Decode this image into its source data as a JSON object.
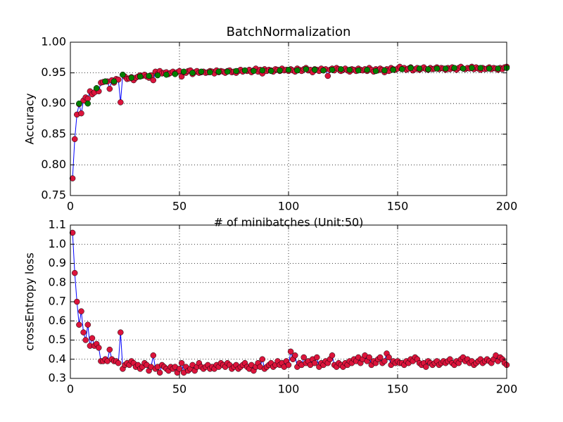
{
  "chart_data": [
    {
      "type": "line",
      "title": "BatchNormalization",
      "xlabel": "# of minibatches (Unit:50)",
      "ylabel": "Accuracy",
      "x": [
        1,
        2,
        3,
        4,
        5,
        6,
        7,
        8,
        9,
        10,
        11,
        12,
        13,
        14,
        15,
        16,
        17,
        18,
        19,
        20,
        21,
        22,
        23,
        24,
        25,
        26,
        27,
        28,
        29,
        30,
        31,
        32,
        33,
        34,
        35,
        36,
        37,
        38,
        39,
        40,
        41,
        42,
        43,
        44,
        45,
        46,
        47,
        48,
        49,
        50,
        51,
        52,
        53,
        54,
        55,
        56,
        57,
        58,
        59,
        60,
        61,
        62,
        63,
        64,
        65,
        66,
        67,
        68,
        69,
        70,
        71,
        72,
        73,
        74,
        75,
        76,
        77,
        78,
        79,
        80,
        81,
        82,
        83,
        84,
        85,
        86,
        87,
        88,
        89,
        90,
        91,
        92,
        93,
        94,
        95,
        96,
        97,
        98,
        99,
        100,
        101,
        102,
        103,
        104,
        105,
        106,
        107,
        108,
        109,
        110,
        111,
        112,
        113,
        114,
        115,
        116,
        117,
        118,
        119,
        120,
        121,
        122,
        123,
        124,
        125,
        126,
        127,
        128,
        129,
        130,
        131,
        132,
        133,
        134,
        135,
        136,
        137,
        138,
        139,
        140,
        141,
        142,
        143,
        144,
        145,
        146,
        147,
        148,
        149,
        150,
        151,
        152,
        153,
        154,
        155,
        156,
        157,
        158,
        159,
        160,
        161,
        162,
        163,
        164,
        165,
        166,
        167,
        168,
        169,
        170,
        171,
        172,
        173,
        174,
        175,
        176,
        177,
        178,
        179,
        180,
        181,
        182,
        183,
        184,
        185,
        186,
        187,
        188,
        189,
        190,
        191,
        192,
        193,
        194,
        195,
        196,
        197,
        198,
        199,
        200
      ],
      "series": [
        {
          "color": "#0000ff",
          "marker_color": "#dc143c",
          "line": true,
          "values": [
            0.778,
            0.842,
            0.882,
            0.899,
            0.884,
            0.905,
            0.91,
            0.908,
            0.92,
            0.915,
            0.918,
            0.925,
            0.92,
            0.934,
            0.935,
            0.936,
            0.936,
            0.924,
            0.938,
            0.934,
            0.94,
            0.939,
            0.902,
            0.947,
            0.944,
            0.94,
            0.941,
            0.943,
            0.938,
            0.942,
            0.944,
            0.946,
            0.945,
            0.947,
            0.944,
            0.942,
            0.946,
            0.938,
            0.952,
            0.948,
            0.953,
            0.949,
            0.95,
            0.951,
            0.948,
            0.95,
            0.952,
            0.949,
            0.951,
            0.953,
            0.944,
            0.951,
            0.95,
            0.953,
            0.954,
            0.948,
            0.951,
            0.953,
            0.95,
            0.951,
            0.952,
            0.95,
            0.951,
            0.953,
            0.952,
            0.949,
            0.954,
            0.951,
            0.953,
            0.952,
            0.95,
            0.953,
            0.954,
            0.951,
            0.952,
            0.95,
            0.953,
            0.955,
            0.952,
            0.954,
            0.953,
            0.955,
            0.951,
            0.954,
            0.957,
            0.952,
            0.955,
            0.949,
            0.956,
            0.953,
            0.955,
            0.954,
            0.952,
            0.956,
            0.955,
            0.953,
            0.957,
            0.954,
            0.955,
            0.953,
            0.956,
            0.954,
            0.952,
            0.957,
            0.955,
            0.953,
            0.956,
            0.958,
            0.954,
            0.955,
            0.951,
            0.956,
            0.955,
            0.953,
            0.957,
            0.954,
            0.956,
            0.945,
            0.955,
            0.957,
            0.954,
            0.958,
            0.956,
            0.953,
            0.955,
            0.957,
            0.954,
            0.952,
            0.956,
            0.955,
            0.953,
            0.957,
            0.955,
            0.954,
            0.956,
            0.953,
            0.958,
            0.955,
            0.952,
            0.956,
            0.954,
            0.957,
            0.955,
            0.951,
            0.956,
            0.953,
            0.958,
            0.956,
            0.955,
            0.957,
            0.96,
            0.956,
            0.958,
            0.955,
            0.957,
            0.959,
            0.954,
            0.956,
            0.958,
            0.955,
            0.957,
            0.959,
            0.956,
            0.955,
            0.958,
            0.956,
            0.957,
            0.959,
            0.956,
            0.958,
            0.957,
            0.955,
            0.958,
            0.956,
            0.959,
            0.957,
            0.955,
            0.958,
            0.96,
            0.957,
            0.956,
            0.958,
            0.957,
            0.96,
            0.956,
            0.959,
            0.957,
            0.955,
            0.958,
            0.956,
            0.957,
            0.959,
            0.956,
            0.958,
            0.957,
            0.955,
            0.958,
            0.956,
            0.959,
            0.96
          ]
        },
        {
          "marker_color": "#008000",
          "line": false,
          "x": [
            4,
            8,
            12,
            16,
            20,
            24,
            28,
            32,
            36,
            40,
            44,
            48,
            52,
            56,
            60,
            64,
            68,
            72,
            76,
            80,
            84,
            88,
            92,
            96,
            100,
            104,
            108,
            112,
            116,
            120,
            124,
            128,
            132,
            136,
            140,
            144,
            148,
            152,
            156,
            160,
            164,
            168,
            172,
            176,
            180,
            184,
            188,
            192,
            196,
            200
          ],
          "values": [
            0.9,
            0.9,
            0.925,
            0.936,
            0.936,
            0.947,
            0.942,
            0.944,
            0.945,
            0.946,
            0.947,
            0.948,
            0.952,
            0.95,
            0.952,
            0.951,
            0.952,
            0.952,
            0.953,
            0.954,
            0.953,
            0.954,
            0.953,
            0.954,
            0.955,
            0.954,
            0.956,
            0.955,
            0.954,
            0.955,
            0.956,
            0.955,
            0.954,
            0.955,
            0.953,
            0.954,
            0.955,
            0.956,
            0.958,
            0.957,
            0.956,
            0.957,
            0.957,
            0.958,
            0.957,
            0.958,
            0.958,
            0.957,
            0.957,
            0.958
          ]
        }
      ],
      "xlim": [
        0,
        200
      ],
      "xticks": [
        0,
        50,
        100,
        150,
        200
      ],
      "ylim": [
        0.75,
        1.0
      ],
      "yticks": [
        0.75,
        {
          "value": 0.8,
          "label": "0.80"
        },
        0.85,
        {
          "value": 0.9,
          "label": "0.90"
        },
        0.95,
        {
          "value": 1.0,
          "label": "1.00"
        }
      ],
      "grid": true
    },
    {
      "type": "line",
      "ylabel": "crossEntropy loss",
      "x": [
        1,
        2,
        3,
        4,
        5,
        6,
        7,
        8,
        9,
        10,
        11,
        12,
        13,
        14,
        15,
        16,
        17,
        18,
        19,
        20,
        21,
        22,
        23,
        24,
        25,
        26,
        27,
        28,
        29,
        30,
        31,
        32,
        33,
        34,
        35,
        36,
        37,
        38,
        39,
        40,
        41,
        42,
        43,
        44,
        45,
        46,
        47,
        48,
        49,
        50,
        51,
        52,
        53,
        54,
        55,
        56,
        57,
        58,
        59,
        60,
        61,
        62,
        63,
        64,
        65,
        66,
        67,
        68,
        69,
        70,
        71,
        72,
        73,
        74,
        75,
        76,
        77,
        78,
        79,
        80,
        81,
        82,
        83,
        84,
        85,
        86,
        87,
        88,
        89,
        90,
        91,
        92,
        93,
        94,
        95,
        96,
        97,
        98,
        99,
        100,
        101,
        102,
        103,
        104,
        105,
        106,
        107,
        108,
        109,
        110,
        111,
        112,
        113,
        114,
        115,
        116,
        117,
        118,
        119,
        120,
        121,
        122,
        123,
        124,
        125,
        126,
        127,
        128,
        129,
        130,
        131,
        132,
        133,
        134,
        135,
        136,
        137,
        138,
        139,
        140,
        141,
        142,
        143,
        144,
        145,
        146,
        147,
        148,
        149,
        150,
        151,
        152,
        153,
        154,
        155,
        156,
        157,
        158,
        159,
        160,
        161,
        162,
        163,
        164,
        165,
        166,
        167,
        168,
        169,
        170,
        171,
        172,
        173,
        174,
        175,
        176,
        177,
        178,
        179,
        180,
        181,
        182,
        183,
        184,
        185,
        186,
        187,
        188,
        189,
        190,
        191,
        192,
        193,
        194,
        195,
        196,
        197,
        198,
        199,
        200
      ],
      "series": [
        {
          "color": "#0000ff",
          "marker_color": "#dc143c",
          "line": true,
          "values": [
            1.06,
            0.85,
            0.7,
            0.58,
            0.65,
            0.54,
            0.5,
            0.58,
            0.47,
            0.51,
            0.47,
            0.48,
            0.46,
            0.39,
            0.39,
            0.4,
            0.39,
            0.45,
            0.4,
            0.39,
            0.39,
            0.38,
            0.54,
            0.35,
            0.37,
            0.38,
            0.37,
            0.39,
            0.38,
            0.36,
            0.37,
            0.35,
            0.36,
            0.38,
            0.37,
            0.34,
            0.36,
            0.42,
            0.35,
            0.36,
            0.33,
            0.37,
            0.36,
            0.35,
            0.34,
            0.36,
            0.35,
            0.36,
            0.33,
            0.35,
            0.38,
            0.33,
            0.36,
            0.34,
            0.35,
            0.37,
            0.34,
            0.36,
            0.38,
            0.36,
            0.35,
            0.36,
            0.37,
            0.35,
            0.36,
            0.35,
            0.37,
            0.36,
            0.38,
            0.37,
            0.36,
            0.38,
            0.37,
            0.35,
            0.36,
            0.37,
            0.35,
            0.36,
            0.37,
            0.38,
            0.36,
            0.35,
            0.37,
            0.34,
            0.36,
            0.38,
            0.36,
            0.4,
            0.35,
            0.36,
            0.37,
            0.38,
            0.36,
            0.37,
            0.39,
            0.37,
            0.38,
            0.36,
            0.39,
            0.37,
            0.44,
            0.4,
            0.42,
            0.36,
            0.38,
            0.37,
            0.41,
            0.38,
            0.39,
            0.37,
            0.4,
            0.38,
            0.41,
            0.36,
            0.38,
            0.37,
            0.39,
            0.38,
            0.4,
            0.42,
            0.37,
            0.36,
            0.38,
            0.37,
            0.36,
            0.38,
            0.37,
            0.39,
            0.38,
            0.4,
            0.39,
            0.41,
            0.38,
            0.4,
            0.42,
            0.39,
            0.41,
            0.37,
            0.39,
            0.38,
            0.4,
            0.41,
            0.38,
            0.39,
            0.43,
            0.41,
            0.37,
            0.39,
            0.38,
            0.39,
            0.38,
            0.38,
            0.37,
            0.39,
            0.38,
            0.4,
            0.39,
            0.41,
            0.4,
            0.38,
            0.37,
            0.38,
            0.36,
            0.39,
            0.38,
            0.37,
            0.38,
            0.39,
            0.37,
            0.38,
            0.39,
            0.38,
            0.39,
            0.4,
            0.38,
            0.37,
            0.39,
            0.38,
            0.4,
            0.41,
            0.39,
            0.4,
            0.38,
            0.39,
            0.37,
            0.38,
            0.39,
            0.4,
            0.38,
            0.39,
            0.4,
            0.39,
            0.38,
            0.4,
            0.42,
            0.39,
            0.41,
            0.4,
            0.38,
            0.37
          ]
        }
      ],
      "xlim": [
        0,
        200
      ],
      "xticks": [
        0,
        50,
        100,
        150,
        200
      ],
      "ylim": [
        0.3,
        1.1
      ],
      "yticks": [
        0.3,
        0.4,
        0.5,
        0.6,
        0.7,
        0.8,
        0.9,
        {
          "value": 1.0,
          "label": "1.0"
        },
        1.1
      ],
      "grid": true
    }
  ]
}
